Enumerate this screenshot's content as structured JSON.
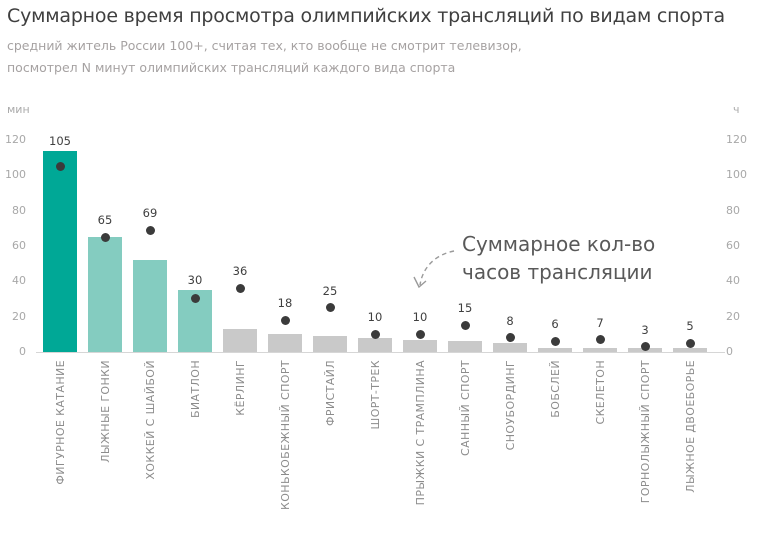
{
  "header": {
    "title": "Суммарное время просмотра олимпийских трансляций по видам спорта",
    "subtitle_line1": "средний житель России 100+, считая тех, кто вообще не смотрит телевизор,",
    "subtitle_line2": "посмотрел N минут олимпийских трансляций каждого вида спорта"
  },
  "annotation": {
    "line1": "Суммарное кол-во",
    "line2": "часов трансляции"
  },
  "chart_data": {
    "type": "bar",
    "categories": [
      "ФИГУРНОЕ КАТАНИЕ",
      "ЛЫЖНЫЕ ГОНКИ",
      "ХОККЕЙ С ШАЙБОЙ",
      "БИАТЛОН",
      "КЁРЛИНГ",
      "КОНЬКОБЕЖНЫЙ СПОРТ",
      "ФРИСТАЙЛ",
      "ШОРТ-ТРЕК",
      "ПРЫЖКИ С ТРАМПЛИНА",
      "САННЫЙ СПОРТ",
      "СНОУБОРДИНГ",
      "БОБСЛЕЙ",
      "СКЕЛЕТОН",
      "ГОРНОЛЫЖНЫЙ СПОРТ",
      "ЛЫЖНОЕ ДВОЕБОРЬЕ"
    ],
    "series": [
      {
        "name": "минуты просмотра",
        "type": "bar",
        "axis": "left",
        "values": [
          114,
          65,
          52,
          35,
          13,
          10,
          9,
          8,
          7,
          6,
          5,
          2,
          2,
          2,
          2
        ]
      },
      {
        "name": "часы трансляции",
        "type": "scatter",
        "axis": "right",
        "values": [
          105,
          65,
          69,
          30,
          36,
          18,
          25,
          10,
          10,
          15,
          8,
          6,
          7,
          3,
          5
        ],
        "labels_visible": true
      }
    ],
    "left_axis": {
      "unit": "мин",
      "min": 0,
      "max": 120,
      "ticks": [
        120,
        100,
        80,
        60,
        40,
        20,
        0
      ]
    },
    "right_axis": {
      "unit": "ч",
      "min": 0,
      "max": 120,
      "ticks": [
        120,
        100,
        80,
        60,
        40,
        20,
        0
      ]
    },
    "grid": false,
    "legend": "none",
    "colors": {
      "highlight": "#00A896",
      "accent": "#84CCC0",
      "muted": "#C9C9C9",
      "dot": "#3B3B3B"
    },
    "bar_styles": [
      "highlight",
      "accent",
      "accent",
      "accent",
      "muted",
      "muted",
      "muted",
      "muted",
      "muted",
      "muted",
      "muted",
      "muted",
      "muted",
      "muted",
      "muted"
    ]
  }
}
